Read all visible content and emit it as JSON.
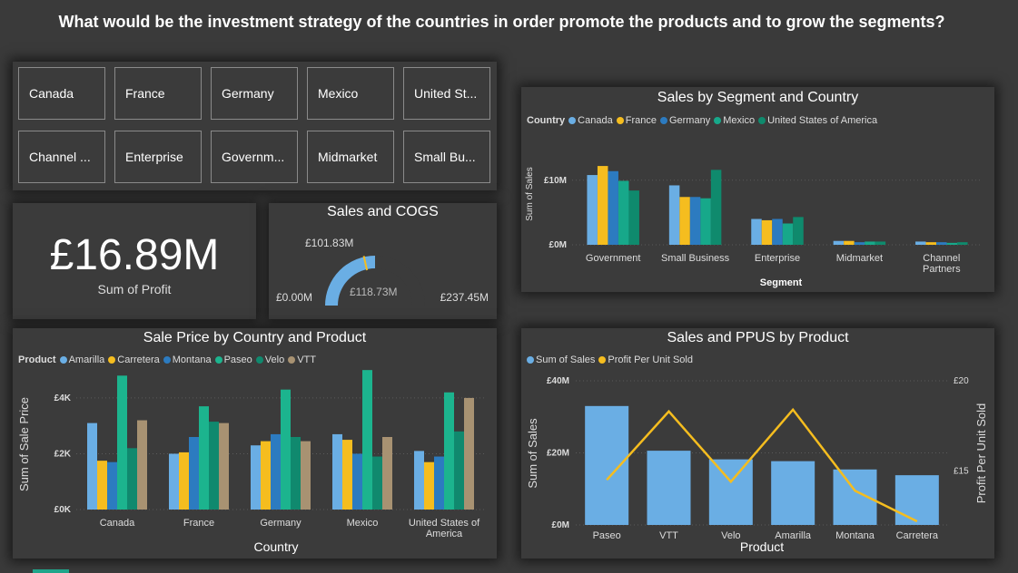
{
  "title": "What would be the investment strategy of the countries in order promote the products and to grow the segments?",
  "slicer": {
    "row1": [
      "Canada",
      "France",
      "Germany",
      "Mexico",
      "United St..."
    ],
    "row2": [
      "Channel ...",
      "Enterprise",
      "Governm...",
      "Midmarket",
      "Small Bu..."
    ]
  },
  "kpi": {
    "value": "£16.89M",
    "label": "Sum of Profit"
  },
  "gauge": {
    "title": "Sales and COGS",
    "min_label": "£0.00M",
    "max_label": "£237.45M",
    "target_label": "£101.83M",
    "value_label": "£118.73M",
    "value": 118.73,
    "target": 101.83,
    "max": 237.45
  },
  "colors": {
    "canada": "#6aaee4",
    "france": "#f5bd1f",
    "germany": "#2c7bc0",
    "mexico": "#17a88a",
    "usa": "#0f8a6d",
    "amarilla": "#6aaee4",
    "carretera": "#f5bd1f",
    "montana": "#2c7bc0",
    "paseo": "#1cb48e",
    "velo": "#10896e",
    "vtt": "#a89272",
    "sales": "#6aaee4",
    "ppus": "#f5bd1f"
  },
  "segment_chart": {
    "title": "Sales by Segment and Country",
    "legend_title": "Country",
    "y_axis_label": "Sum of Sales",
    "x_axis_label": "Segment",
    "y_ticks": [
      "£0M",
      "£10M"
    ]
  },
  "price_chart": {
    "title": "Sale Price by Country and Product",
    "legend_title": "Product",
    "y_axis_label": "Sum of Sale Price",
    "x_axis_label": "Country",
    "y_ticks": [
      "£0K",
      "£2K",
      "£4K"
    ]
  },
  "ppus_chart": {
    "title": "Sales and PPUS by Product",
    "y_axis_label": "Sum of Sales",
    "y2_axis_label": "Profit Per Unit Sold",
    "x_axis_label": "Product",
    "y_ticks": [
      "£0M",
      "£20M",
      "£40M"
    ],
    "y2_ticks": [
      "£15",
      "£20"
    ]
  },
  "chart_data": [
    {
      "type": "bar",
      "title": "Sales by Segment and Country",
      "categories": [
        "Government",
        "Small Business",
        "Enterprise",
        "Midmarket",
        "Channel Partners"
      ],
      "xlabel": "Segment",
      "ylabel": "Sum of Sales",
      "ylim": [
        0,
        16
      ],
      "series": [
        {
          "name": "Canada",
          "color_key": "canada",
          "values": [
            10.8,
            9.2,
            4.0,
            0.6,
            0.5
          ]
        },
        {
          "name": "France",
          "color_key": "france",
          "values": [
            12.2,
            7.4,
            3.8,
            0.6,
            0.4
          ]
        },
        {
          "name": "Germany",
          "color_key": "germany",
          "values": [
            11.4,
            7.4,
            4.0,
            0.4,
            0.4
          ]
        },
        {
          "name": "Mexico",
          "color_key": "mexico",
          "values": [
            9.9,
            7.2,
            3.3,
            0.5,
            0.3
          ]
        },
        {
          "name": "United States of America",
          "color_key": "usa",
          "values": [
            8.4,
            11.6,
            4.3,
            0.5,
            0.4
          ]
        }
      ]
    },
    {
      "type": "bar",
      "title": "Sale Price by Country and Product",
      "categories": [
        "Canada",
        "France",
        "Germany",
        "Mexico",
        "United States of America"
      ],
      "xlabel": "Country",
      "ylabel": "Sum of Sale Price",
      "ylim": [
        0,
        5.2
      ],
      "series": [
        {
          "name": "Amarilla",
          "color_key": "amarilla",
          "values": [
            3.1,
            2.0,
            2.3,
            2.7,
            2.1
          ]
        },
        {
          "name": "Carretera",
          "color_key": "carretera",
          "values": [
            1.75,
            2.05,
            2.45,
            2.5,
            1.7
          ]
        },
        {
          "name": "Montana",
          "color_key": "montana",
          "values": [
            1.7,
            2.6,
            2.7,
            2.0,
            1.9
          ]
        },
        {
          "name": "Paseo",
          "color_key": "paseo",
          "values": [
            4.8,
            3.7,
            4.3,
            5.0,
            4.2
          ]
        },
        {
          "name": "Velo",
          "color_key": "velo",
          "values": [
            2.2,
            3.15,
            2.6,
            1.9,
            2.8
          ]
        },
        {
          "name": "VTT",
          "color_key": "vtt",
          "values": [
            3.2,
            3.1,
            2.45,
            2.6,
            4.0
          ]
        }
      ]
    },
    {
      "type": "bar",
      "title": "Sales and PPUS by Product",
      "categories": [
        "Paseo",
        "VTT",
        "Velo",
        "Amarilla",
        "Montana",
        "Carretera"
      ],
      "xlabel": "Product",
      "ylabel": "Sum of Sales",
      "ylim": [
        0,
        40
      ],
      "y2lim": [
        12,
        20
      ],
      "series": [
        {
          "name": "Sum of  Sales",
          "color_key": "sales",
          "kind": "bar",
          "values": [
            33.0,
            20.6,
            18.2,
            17.7,
            15.4,
            13.8
          ]
        },
        {
          "name": "Profit Per Unit Sold",
          "color_key": "ppus",
          "kind": "line",
          "axis": "right",
          "values": [
            14.5,
            18.3,
            14.4,
            18.4,
            13.9,
            12.2
          ]
        }
      ]
    }
  ]
}
